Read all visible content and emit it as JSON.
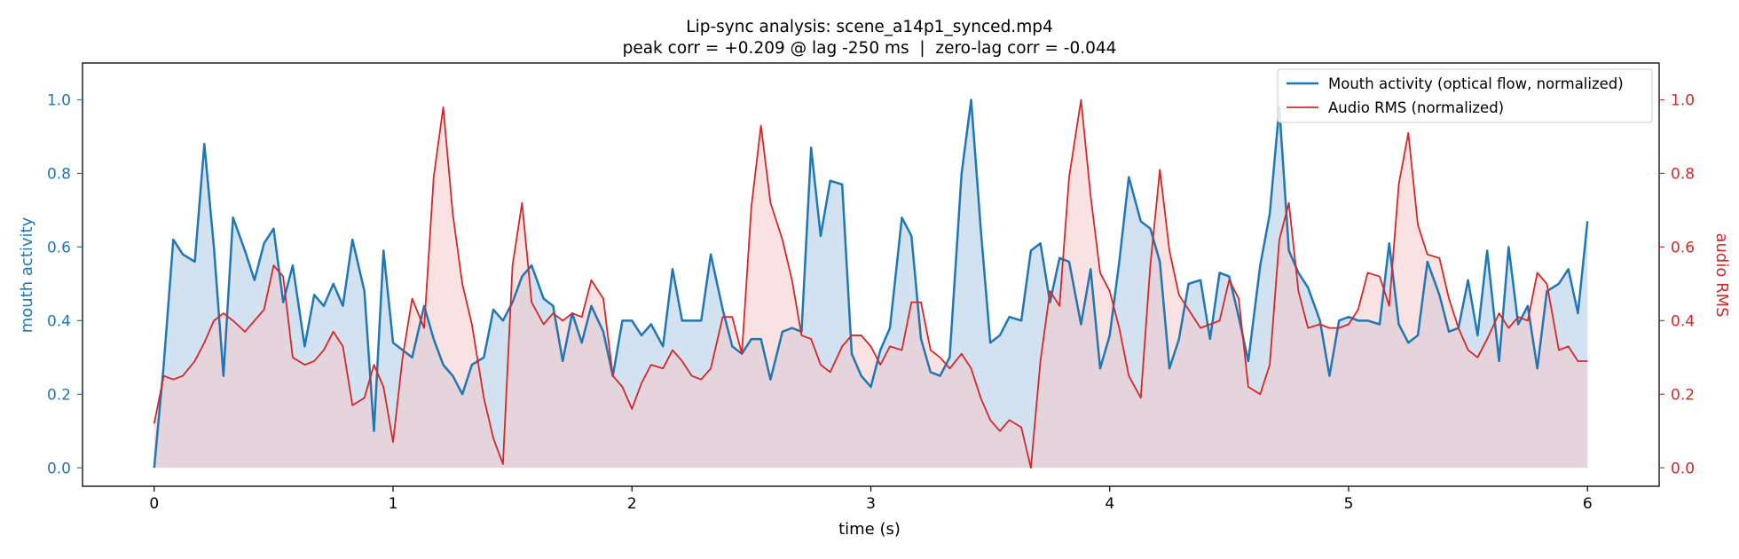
{
  "chart_data": {
    "type": "line",
    "title": "Lip-sync analysis: scene_a14p1_synced.mp4",
    "subtitle": "peak corr = +0.209 @ lag -250 ms  |  zero-lag corr = -0.044",
    "xlabel": "time (s)",
    "ylabel_left": "mouth activity",
    "ylabel_right": "audio RMS",
    "xlim": [
      -0.3,
      6.3
    ],
    "ylim": [
      -0.05,
      1.1
    ],
    "x_ticks": [
      0,
      1,
      2,
      3,
      4,
      5,
      6
    ],
    "y_ticks": [
      0.0,
      0.2,
      0.4,
      0.6,
      0.8,
      1.0
    ],
    "x_tick_labels": [
      "0",
      "1",
      "2",
      "3",
      "4",
      "5",
      "6"
    ],
    "y_left_tick_labels": [
      "0.0",
      "0.2",
      "0.4",
      "0.6",
      "0.8",
      "1.0"
    ],
    "y_right_tick_labels": [
      "0.0",
      "0.2",
      "0.4",
      "0.6",
      "0.8",
      "1.0"
    ],
    "legend_position": "upper right",
    "grid": false,
    "series": [
      {
        "name": "Mouth activity (optical flow, normalized)",
        "axis": "left",
        "color": "#1f77b4",
        "fill_color": "#aecbe6",
        "points": [
          [
            0.0,
            0.0
          ],
          [
            0.04,
            0.28
          ],
          [
            0.08,
            0.62
          ],
          [
            0.12,
            0.58
          ],
          [
            0.17,
            0.56
          ],
          [
            0.21,
            0.88
          ],
          [
            0.25,
            0.6
          ],
          [
            0.29,
            0.25
          ],
          [
            0.33,
            0.68
          ],
          [
            0.38,
            0.59
          ],
          [
            0.42,
            0.51
          ],
          [
            0.46,
            0.61
          ],
          [
            0.5,
            0.65
          ],
          [
            0.54,
            0.45
          ],
          [
            0.58,
            0.55
          ],
          [
            0.63,
            0.33
          ],
          [
            0.67,
            0.47
          ],
          [
            0.71,
            0.44
          ],
          [
            0.75,
            0.5
          ],
          [
            0.79,
            0.44
          ],
          [
            0.83,
            0.62
          ],
          [
            0.88,
            0.48
          ],
          [
            0.92,
            0.1
          ],
          [
            0.96,
            0.59
          ],
          [
            1.0,
            0.34
          ],
          [
            1.04,
            0.32
          ],
          [
            1.08,
            0.3
          ],
          [
            1.13,
            0.44
          ],
          [
            1.17,
            0.35
          ],
          [
            1.21,
            0.28
          ],
          [
            1.25,
            0.25
          ],
          [
            1.29,
            0.2
          ],
          [
            1.33,
            0.28
          ],
          [
            1.38,
            0.3
          ],
          [
            1.42,
            0.43
          ],
          [
            1.46,
            0.4
          ],
          [
            1.5,
            0.45
          ],
          [
            1.54,
            0.52
          ],
          [
            1.58,
            0.55
          ],
          [
            1.63,
            0.46
          ],
          [
            1.67,
            0.44
          ],
          [
            1.71,
            0.29
          ],
          [
            1.75,
            0.42
          ],
          [
            1.79,
            0.34
          ],
          [
            1.83,
            0.44
          ],
          [
            1.88,
            0.37
          ],
          [
            1.92,
            0.25
          ],
          [
            1.96,
            0.4
          ],
          [
            2.0,
            0.4
          ],
          [
            2.04,
            0.36
          ],
          [
            2.08,
            0.39
          ],
          [
            2.13,
            0.33
          ],
          [
            2.17,
            0.54
          ],
          [
            2.21,
            0.4
          ],
          [
            2.25,
            0.4
          ],
          [
            2.29,
            0.4
          ],
          [
            2.33,
            0.58
          ],
          [
            2.38,
            0.43
          ],
          [
            2.42,
            0.33
          ],
          [
            2.46,
            0.31
          ],
          [
            2.5,
            0.35
          ],
          [
            2.54,
            0.35
          ],
          [
            2.58,
            0.24
          ],
          [
            2.63,
            0.37
          ],
          [
            2.67,
            0.38
          ],
          [
            2.71,
            0.37
          ],
          [
            2.75,
            0.87
          ],
          [
            2.79,
            0.63
          ],
          [
            2.83,
            0.78
          ],
          [
            2.88,
            0.77
          ],
          [
            2.92,
            0.31
          ],
          [
            2.96,
            0.25
          ],
          [
            3.0,
            0.22
          ],
          [
            3.04,
            0.32
          ],
          [
            3.08,
            0.38
          ],
          [
            3.13,
            0.68
          ],
          [
            3.17,
            0.63
          ],
          [
            3.21,
            0.35
          ],
          [
            3.25,
            0.26
          ],
          [
            3.29,
            0.25
          ],
          [
            3.33,
            0.3
          ],
          [
            3.38,
            0.8
          ],
          [
            3.42,
            1.0
          ],
          [
            3.46,
            0.65
          ],
          [
            3.5,
            0.34
          ],
          [
            3.54,
            0.36
          ],
          [
            3.58,
            0.41
          ],
          [
            3.63,
            0.4
          ],
          [
            3.67,
            0.59
          ],
          [
            3.71,
            0.61
          ],
          [
            3.75,
            0.45
          ],
          [
            3.79,
            0.57
          ],
          [
            3.83,
            0.56
          ],
          [
            3.88,
            0.39
          ],
          [
            3.92,
            0.54
          ],
          [
            3.96,
            0.27
          ],
          [
            4.0,
            0.36
          ],
          [
            4.04,
            0.56
          ],
          [
            4.08,
            0.79
          ],
          [
            4.13,
            0.67
          ],
          [
            4.17,
            0.65
          ],
          [
            4.21,
            0.56
          ],
          [
            4.25,
            0.27
          ],
          [
            4.29,
            0.35
          ],
          [
            4.33,
            0.5
          ],
          [
            4.38,
            0.51
          ],
          [
            4.42,
            0.35
          ],
          [
            4.46,
            0.53
          ],
          [
            4.5,
            0.52
          ],
          [
            4.54,
            0.41
          ],
          [
            4.58,
            0.29
          ],
          [
            4.63,
            0.55
          ],
          [
            4.67,
            0.69
          ],
          [
            4.71,
            0.98
          ],
          [
            4.75,
            0.59
          ],
          [
            4.79,
            0.53
          ],
          [
            4.83,
            0.49
          ],
          [
            4.88,
            0.4
          ],
          [
            4.92,
            0.25
          ],
          [
            4.96,
            0.4
          ],
          [
            5.0,
            0.41
          ],
          [
            5.04,
            0.4
          ],
          [
            5.08,
            0.4
          ],
          [
            5.13,
            0.39
          ],
          [
            5.17,
            0.61
          ],
          [
            5.21,
            0.39
          ],
          [
            5.25,
            0.34
          ],
          [
            5.29,
            0.36
          ],
          [
            5.33,
            0.56
          ],
          [
            5.38,
            0.47
          ],
          [
            5.42,
            0.37
          ],
          [
            5.46,
            0.38
          ],
          [
            5.5,
            0.51
          ],
          [
            5.54,
            0.36
          ],
          [
            5.58,
            0.59
          ],
          [
            5.63,
            0.29
          ],
          [
            5.67,
            0.6
          ],
          [
            5.71,
            0.39
          ],
          [
            5.75,
            0.44
          ],
          [
            5.79,
            0.27
          ],
          [
            5.83,
            0.48
          ],
          [
            5.88,
            0.5
          ],
          [
            5.92,
            0.54
          ],
          [
            5.96,
            0.42
          ],
          [
            6.0,
            0.67
          ]
        ]
      },
      {
        "name": "Audio RMS (normalized)",
        "axis": "right",
        "color": "#d62728",
        "fill_color": "#f7c6c6",
        "points": [
          [
            0.0,
            0.12
          ],
          [
            0.04,
            0.25
          ],
          [
            0.08,
            0.24
          ],
          [
            0.12,
            0.25
          ],
          [
            0.17,
            0.29
          ],
          [
            0.21,
            0.34
          ],
          [
            0.25,
            0.4
          ],
          [
            0.29,
            0.42
          ],
          [
            0.33,
            0.4
          ],
          [
            0.38,
            0.37
          ],
          [
            0.42,
            0.4
          ],
          [
            0.46,
            0.43
          ],
          [
            0.5,
            0.55
          ],
          [
            0.54,
            0.52
          ],
          [
            0.58,
            0.3
          ],
          [
            0.63,
            0.28
          ],
          [
            0.67,
            0.29
          ],
          [
            0.71,
            0.32
          ],
          [
            0.75,
            0.37
          ],
          [
            0.79,
            0.33
          ],
          [
            0.83,
            0.17
          ],
          [
            0.88,
            0.19
          ],
          [
            0.92,
            0.28
          ],
          [
            0.96,
            0.22
          ],
          [
            1.0,
            0.07
          ],
          [
            1.04,
            0.3
          ],
          [
            1.08,
            0.46
          ],
          [
            1.13,
            0.38
          ],
          [
            1.17,
            0.79
          ],
          [
            1.21,
            0.98
          ],
          [
            1.25,
            0.69
          ],
          [
            1.29,
            0.5
          ],
          [
            1.33,
            0.39
          ],
          [
            1.38,
            0.19
          ],
          [
            1.42,
            0.08
          ],
          [
            1.46,
            0.01
          ],
          [
            1.5,
            0.55
          ],
          [
            1.54,
            0.72
          ],
          [
            1.58,
            0.45
          ],
          [
            1.63,
            0.39
          ],
          [
            1.67,
            0.42
          ],
          [
            1.71,
            0.4
          ],
          [
            1.75,
            0.42
          ],
          [
            1.79,
            0.41
          ],
          [
            1.83,
            0.51
          ],
          [
            1.88,
            0.46
          ],
          [
            1.92,
            0.25
          ],
          [
            1.96,
            0.22
          ],
          [
            2.0,
            0.16
          ],
          [
            2.04,
            0.23
          ],
          [
            2.08,
            0.28
          ],
          [
            2.13,
            0.27
          ],
          [
            2.17,
            0.32
          ],
          [
            2.21,
            0.29
          ],
          [
            2.25,
            0.25
          ],
          [
            2.29,
            0.24
          ],
          [
            2.33,
            0.27
          ],
          [
            2.38,
            0.41
          ],
          [
            2.42,
            0.41
          ],
          [
            2.46,
            0.31
          ],
          [
            2.5,
            0.71
          ],
          [
            2.54,
            0.93
          ],
          [
            2.58,
            0.72
          ],
          [
            2.63,
            0.62
          ],
          [
            2.67,
            0.51
          ],
          [
            2.71,
            0.36
          ],
          [
            2.75,
            0.35
          ],
          [
            2.79,
            0.28
          ],
          [
            2.83,
            0.26
          ],
          [
            2.88,
            0.33
          ],
          [
            2.92,
            0.36
          ],
          [
            2.96,
            0.36
          ],
          [
            3.0,
            0.33
          ],
          [
            3.04,
            0.28
          ],
          [
            3.08,
            0.33
          ],
          [
            3.13,
            0.32
          ],
          [
            3.17,
            0.45
          ],
          [
            3.21,
            0.45
          ],
          [
            3.25,
            0.32
          ],
          [
            3.29,
            0.3
          ],
          [
            3.33,
            0.27
          ],
          [
            3.38,
            0.31
          ],
          [
            3.42,
            0.27
          ],
          [
            3.46,
            0.19
          ],
          [
            3.5,
            0.13
          ],
          [
            3.54,
            0.1
          ],
          [
            3.58,
            0.13
          ],
          [
            3.63,
            0.11
          ],
          [
            3.67,
            0.0
          ],
          [
            3.71,
            0.29
          ],
          [
            3.75,
            0.48
          ],
          [
            3.79,
            0.44
          ],
          [
            3.83,
            0.79
          ],
          [
            3.88,
            1.0
          ],
          [
            3.92,
            0.74
          ],
          [
            3.96,
            0.53
          ],
          [
            4.0,
            0.48
          ],
          [
            4.04,
            0.38
          ],
          [
            4.08,
            0.25
          ],
          [
            4.13,
            0.19
          ],
          [
            4.17,
            0.55
          ],
          [
            4.21,
            0.81
          ],
          [
            4.25,
            0.59
          ],
          [
            4.29,
            0.47
          ],
          [
            4.33,
            0.43
          ],
          [
            4.38,
            0.38
          ],
          [
            4.42,
            0.39
          ],
          [
            4.46,
            0.4
          ],
          [
            4.5,
            0.51
          ],
          [
            4.54,
            0.46
          ],
          [
            4.58,
            0.22
          ],
          [
            4.63,
            0.2
          ],
          [
            4.67,
            0.28
          ],
          [
            4.71,
            0.62
          ],
          [
            4.75,
            0.72
          ],
          [
            4.79,
            0.48
          ],
          [
            4.83,
            0.38
          ],
          [
            4.88,
            0.39
          ],
          [
            4.92,
            0.38
          ],
          [
            4.96,
            0.38
          ],
          [
            5.0,
            0.39
          ],
          [
            5.04,
            0.43
          ],
          [
            5.08,
            0.53
          ],
          [
            5.13,
            0.52
          ],
          [
            5.17,
            0.44
          ],
          [
            5.21,
            0.77
          ],
          [
            5.25,
            0.91
          ],
          [
            5.29,
            0.66
          ],
          [
            5.33,
            0.58
          ],
          [
            5.38,
            0.57
          ],
          [
            5.42,
            0.46
          ],
          [
            5.46,
            0.38
          ],
          [
            5.5,
            0.32
          ],
          [
            5.54,
            0.3
          ],
          [
            5.58,
            0.35
          ],
          [
            5.63,
            0.42
          ],
          [
            5.67,
            0.38
          ],
          [
            5.71,
            0.41
          ],
          [
            5.75,
            0.4
          ],
          [
            5.79,
            0.53
          ],
          [
            5.83,
            0.5
          ],
          [
            5.88,
            0.32
          ],
          [
            5.92,
            0.33
          ],
          [
            5.96,
            0.29
          ],
          [
            6.0,
            0.29
          ]
        ]
      }
    ]
  }
}
